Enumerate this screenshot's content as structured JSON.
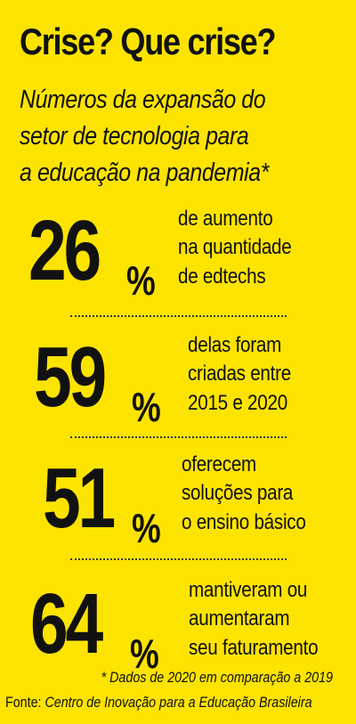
{
  "title": "Crise? Que crise?",
  "subtitle": [
    "Números da expansão do",
    "setor de tecnologia para",
    "a educação na pandemia*"
  ],
  "stats": [
    {
      "number": "26",
      "unit": "%",
      "text": [
        "de aumento",
        "na quantidade",
        "de edtechs"
      ]
    },
    {
      "number": "59",
      "unit": "%",
      "text": [
        "delas foram",
        "criadas entre",
        "2015 e 2020"
      ]
    },
    {
      "number": "51",
      "unit": "%",
      "text": [
        "oferecem",
        "soluções para",
        "o ensino básico"
      ]
    },
    {
      "number": "64",
      "unit": "%",
      "text": [
        "mantiveram ou",
        "aumentaram",
        "seu faturamento"
      ]
    }
  ],
  "footnote": "* Dados de 2020 em comparação a 2019",
  "source": {
    "label": "Fonte: ",
    "name": "Centro de Inovação para a Educação Brasileira"
  },
  "colors": {
    "background": "#fce300",
    "text": "#111111"
  }
}
